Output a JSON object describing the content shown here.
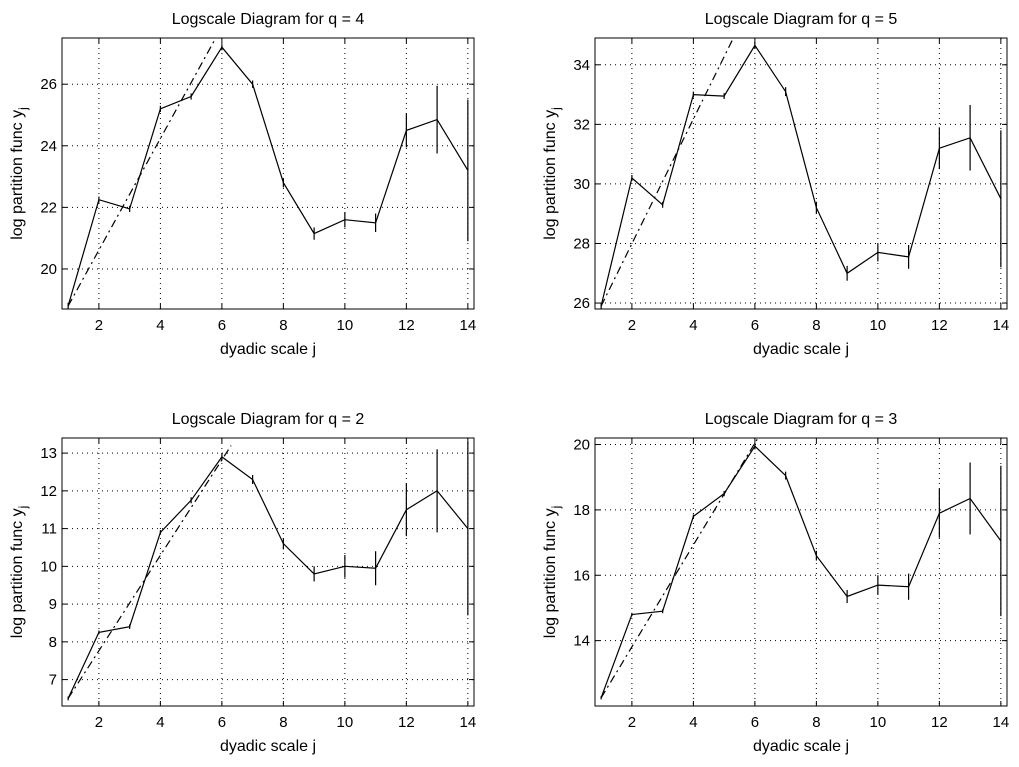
{
  "chart_data": [
    {
      "type": "line",
      "title": "Logscale Diagram for q = 4",
      "xlabel": "dyadic scale j",
      "ylabel_main": "log partition func y",
      "ylabel_sub": "j",
      "xlim": [
        0.8,
        14.2
      ],
      "ylim": [
        18.7,
        27.5
      ],
      "xticks": [
        2,
        4,
        6,
        8,
        10,
        12,
        14
      ],
      "yticks": [
        20,
        22,
        24,
        26
      ],
      "series": [
        {
          "x": [
            1,
            2,
            3,
            4,
            5,
            6,
            7,
            8,
            9,
            10,
            11,
            12,
            13,
            14
          ],
          "values": [
            18.8,
            22.25,
            21.95,
            25.2,
            25.6,
            27.2,
            26.0,
            22.8,
            21.15,
            21.6,
            21.5,
            24.5,
            24.85,
            23.2
          ],
          "err": [
            0.1,
            0.1,
            0.1,
            0.1,
            0.1,
            0.1,
            0.12,
            0.15,
            0.2,
            0.25,
            0.3,
            0.55,
            1.1,
            2.3
          ]
        }
      ],
      "fit": {
        "x": [
          1,
          5.8
        ],
        "y": [
          18.8,
          27.5
        ]
      }
    },
    {
      "type": "line",
      "title": "Logscale Diagram for q = 5",
      "xlabel": "dyadic scale j",
      "ylabel_main": "log partition func y",
      "ylabel_sub": "j",
      "xlim": [
        0.8,
        14.2
      ],
      "ylim": [
        25.8,
        34.9
      ],
      "xticks": [
        2,
        4,
        6,
        8,
        10,
        12,
        14
      ],
      "yticks": [
        26,
        28,
        30,
        32,
        34
      ],
      "series": [
        {
          "x": [
            1,
            2,
            3,
            4,
            5,
            6,
            7,
            8,
            9,
            10,
            11,
            12,
            13,
            14
          ],
          "values": [
            25.9,
            30.2,
            29.3,
            33.0,
            32.95,
            34.65,
            33.1,
            29.2,
            27.0,
            27.7,
            27.55,
            31.2,
            31.55,
            29.5
          ],
          "err": [
            0.1,
            0.1,
            0.1,
            0.1,
            0.1,
            0.12,
            0.15,
            0.2,
            0.25,
            0.3,
            0.4,
            0.7,
            1.1,
            2.3
          ]
        }
      ],
      "fit": {
        "x": [
          1,
          5.3
        ],
        "y": [
          25.9,
          34.9
        ]
      }
    },
    {
      "type": "line",
      "title": "Logscale Diagram for q = 2",
      "xlabel": "dyadic scale j",
      "ylabel_main": "log partition func y",
      "ylabel_sub": "j",
      "xlim": [
        0.8,
        14.2
      ],
      "ylim": [
        6.3,
        13.4
      ],
      "xticks": [
        2,
        4,
        6,
        8,
        10,
        12,
        14
      ],
      "yticks": [
        7,
        8,
        9,
        10,
        11,
        12,
        13
      ],
      "series": [
        {
          "x": [
            1,
            2,
            3,
            4,
            5,
            6,
            7,
            8,
            9,
            10,
            11,
            12,
            13,
            14
          ],
          "values": [
            6.5,
            8.25,
            8.4,
            10.9,
            11.75,
            12.9,
            12.3,
            10.6,
            9.8,
            10.0,
            9.95,
            11.5,
            12.0,
            11.0
          ],
          "err": [
            0.05,
            0.05,
            0.06,
            0.06,
            0.08,
            0.1,
            0.12,
            0.15,
            0.2,
            0.3,
            0.45,
            0.7,
            1.1,
            2.3
          ]
        }
      ],
      "fit": {
        "x": [
          1,
          6.3
        ],
        "y": [
          6.5,
          13.2
        ]
      }
    },
    {
      "type": "line",
      "title": "Logscale Diagram for q = 3",
      "xlabel": "dyadic scale j",
      "ylabel_main": "log partition func y",
      "ylabel_sub": "j",
      "xlim": [
        0.8,
        14.2
      ],
      "ylim": [
        12.0,
        20.2
      ],
      "xticks": [
        2,
        4,
        6,
        8,
        10,
        12,
        14
      ],
      "yticks": [
        14,
        16,
        18,
        20
      ],
      "series": [
        {
          "x": [
            1,
            2,
            3,
            4,
            5,
            6,
            7,
            8,
            9,
            10,
            11,
            12,
            13,
            14
          ],
          "values": [
            12.25,
            14.8,
            14.9,
            17.8,
            18.5,
            19.95,
            19.05,
            16.6,
            15.35,
            15.7,
            15.65,
            17.9,
            18.35,
            17.05
          ],
          "err": [
            0.05,
            0.05,
            0.06,
            0.06,
            0.08,
            0.1,
            0.12,
            0.15,
            0.2,
            0.3,
            0.4,
            0.75,
            1.1,
            2.3
          ]
        }
      ],
      "fit": {
        "x": [
          1,
          6.1
        ],
        "y": [
          12.25,
          20.2
        ]
      }
    }
  ]
}
